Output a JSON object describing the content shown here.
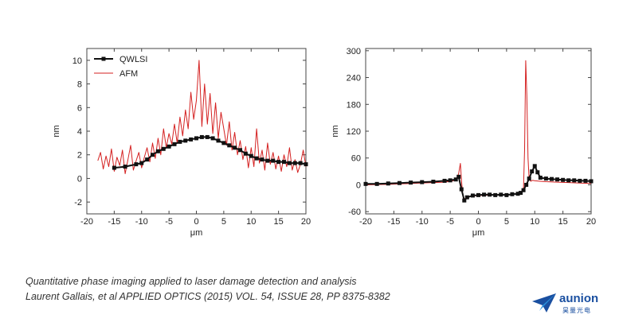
{
  "chart_data": [
    {
      "type": "line",
      "xlabel": "μm",
      "ylabel": "nm",
      "xlim": [
        -20,
        20
      ],
      "ylim": [
        -3,
        11
      ],
      "xticks": [
        "-20",
        "-15",
        "-10",
        "-5",
        "0",
        "5",
        "10",
        "15",
        "20"
      ],
      "yticks": [
        "-2",
        "0",
        "2",
        "4",
        "6",
        "8",
        "10"
      ],
      "legend_position": "top-left",
      "series": [
        {
          "name": "QWLSI",
          "color": "#111111",
          "marker": "square",
          "x": [
            -15,
            -13,
            -11,
            -10,
            -9,
            -8,
            -7,
            -6,
            -5,
            -4,
            -3,
            -2,
            -1,
            0,
            1,
            2,
            3,
            4,
            5,
            6,
            7,
            8,
            9,
            10,
            11,
            12,
            13,
            14,
            15,
            16,
            17,
            18,
            19,
            20
          ],
          "y": [
            0.9,
            1.0,
            1.2,
            1.3,
            1.6,
            2.0,
            2.3,
            2.5,
            2.7,
            2.9,
            3.1,
            3.2,
            3.3,
            3.4,
            3.5,
            3.5,
            3.4,
            3.2,
            3.0,
            2.8,
            2.6,
            2.4,
            2.1,
            1.9,
            1.7,
            1.6,
            1.5,
            1.5,
            1.4,
            1.4,
            1.3,
            1.3,
            1.3,
            1.2
          ]
        },
        {
          "name": "AFM",
          "color": "#d42020",
          "x": [
            -18,
            -17.5,
            -17,
            -16.5,
            -16,
            -15.5,
            -15,
            -14.5,
            -14,
            -13.5,
            -13,
            -12.5,
            -12,
            -11.5,
            -11,
            -10.5,
            -10,
            -9.5,
            -9,
            -8.5,
            -8,
            -7.5,
            -7,
            -6.5,
            -6,
            -5.5,
            -5,
            -4.5,
            -4,
            -3.5,
            -3,
            -2.5,
            -2,
            -1.5,
            -1,
            -0.5,
            0,
            0.5,
            1,
            1.5,
            2,
            2.5,
            3,
            3.5,
            4,
            4.5,
            5,
            5.5,
            6,
            6.5,
            7,
            7.5,
            8,
            8.5,
            9,
            9.5,
            10,
            10.5,
            11,
            11.5,
            12,
            12.5,
            13,
            13.5,
            14,
            14.5,
            15,
            15.5,
            16,
            16.5,
            17,
            17.5,
            18,
            18.5,
            19,
            19.5,
            20
          ],
          "y": [
            1.5,
            2.2,
            0.8,
            1.9,
            1.0,
            2.5,
            0.6,
            1.8,
            1.1,
            2.4,
            0.4,
            1.6,
            2.8,
            0.7,
            1.5,
            2.2,
            0.9,
            1.8,
            2.6,
            1.4,
            3.0,
            1.7,
            3.4,
            2.0,
            4.2,
            2.6,
            3.8,
            2.9,
            4.6,
            3.0,
            5.2,
            3.6,
            5.8,
            4.2,
            7.3,
            5.0,
            6.6,
            10.0,
            4.4,
            8.0,
            4.6,
            7.2,
            3.8,
            6.4,
            3.4,
            5.6,
            4.2,
            2.8,
            4.8,
            2.4,
            3.9,
            2.0,
            3.2,
            1.6,
            2.7,
            0.9,
            2.6,
            1.0,
            4.2,
            1.3,
            2.4,
            0.7,
            3.0,
            1.2,
            2.2,
            0.8,
            1.9,
            0.6,
            2.0,
            1.0,
            2.6,
            0.7,
            1.6,
            0.5,
            1.2,
            2.4,
            1.0
          ]
        }
      ]
    },
    {
      "type": "line",
      "xlabel": "μm",
      "ylabel": "nm",
      "xlim": [
        -20,
        20
      ],
      "ylim": [
        -65,
        305
      ],
      "xticks": [
        "-20",
        "-15",
        "-10",
        "-5",
        "0",
        "5",
        "10",
        "15",
        "20"
      ],
      "yticks": [
        "-60",
        "0",
        "60",
        "120",
        "180",
        "240",
        "300"
      ],
      "series": [
        {
          "name": "QWLSI",
          "color": "#111111",
          "marker": "square",
          "x": [
            -20,
            -18,
            -16,
            -14,
            -12,
            -10,
            -8,
            -6,
            -5,
            -4,
            -3.5,
            -3,
            -2.5,
            -2,
            -1,
            0,
            1,
            2,
            3,
            4,
            5,
            6,
            7,
            7.5,
            8,
            8.5,
            9,
            9.5,
            10,
            10.5,
            11,
            12,
            13,
            14,
            15,
            16,
            17,
            18,
            19,
            20
          ],
          "y": [
            2,
            2,
            3,
            4,
            5,
            6,
            7,
            9,
            10,
            12,
            18,
            -10,
            -35,
            -28,
            -24,
            -23,
            -22,
            -22,
            -23,
            -22,
            -23,
            -21,
            -20,
            -18,
            -12,
            0,
            14,
            30,
            42,
            28,
            16,
            14,
            13,
            12,
            11,
            10,
            10,
            9,
            9,
            8
          ]
        },
        {
          "name": "AFM",
          "color": "#d42020",
          "x": [
            -20,
            -16,
            -12,
            -8,
            -6,
            -5,
            -4,
            -3.5,
            -3.2,
            -3.0,
            -2.8,
            -2.5,
            -2,
            -1,
            0,
            2,
            4,
            6,
            7,
            7.5,
            8,
            8.2,
            8.4,
            8.6,
            8.8,
            9.0,
            9.3,
            9.6,
            10,
            11,
            12,
            14,
            16,
            18,
            20
          ],
          "y": [
            0,
            1,
            3,
            5,
            6,
            8,
            10,
            25,
            48,
            10,
            -20,
            -32,
            -27,
            -25,
            -24,
            -23,
            -22,
            -22,
            -20,
            -16,
            -10,
            80,
            278,
            200,
            60,
            12,
            8,
            10,
            9,
            8,
            7,
            6,
            5,
            4,
            3
          ]
        }
      ]
    }
  ],
  "caption": {
    "line1": "Quantitative phase imaging applied to laser damage detection and analysis",
    "line2": "Laurent Gallais, et al APPLIED OPTICS (2015) VOL. 54, ISSUE 28, PP 8375-8382"
  },
  "logo": {
    "word": "aunion",
    "sub": "昊量光电",
    "color": "#1a4fa0"
  }
}
